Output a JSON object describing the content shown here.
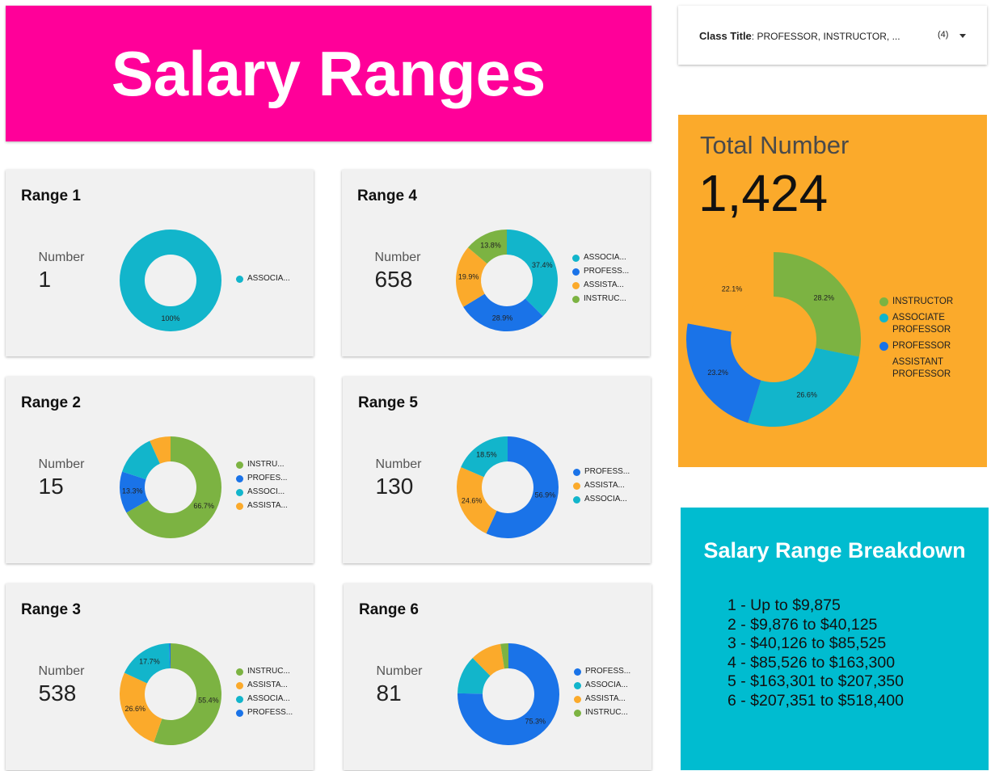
{
  "title": "Salary Ranges",
  "filter": {
    "label": "Class Title",
    "value": ": PROFESSOR, INSTRUCTOR, ...",
    "count": "(4)"
  },
  "breakdown": {
    "title": "Salary Range Breakdown",
    "lines": [
      "1 - Up to $9,875",
      "2 - $9,876 to $40,125",
      "3 - $40,126 to $85,525",
      "4 - $85,526 to $163,300",
      "5 - $163,301 to $207,350",
      "6 - $207,351 to $518,400"
    ]
  },
  "chart_data": [
    {
      "type": "pie",
      "title": "Range 1",
      "metric_label": "Number",
      "metric": 1,
      "categories": [
        "ASSOCIA..."
      ],
      "values": [
        100
      ],
      "value_labels": [
        "100%"
      ],
      "colors": [
        "#12b5cb"
      ]
    },
    {
      "type": "pie",
      "title": "Range 2",
      "metric_label": "Number",
      "metric": 15,
      "categories": [
        "INSTRU...",
        "PROFES...",
        "ASSOCI...",
        "ASSISTA..."
      ],
      "values": [
        66.7,
        13.3,
        13.3,
        6.7
      ],
      "value_labels": [
        "66.7%",
        "13.3%",
        null,
        null
      ],
      "colors": [
        "#7cb342",
        "#1a73e8",
        "#12b5cb",
        "#fbaa2b"
      ]
    },
    {
      "type": "pie",
      "title": "Range 3",
      "metric_label": "Number",
      "metric": 538,
      "categories": [
        "INSTRUC...",
        "ASSISTA...",
        "ASSOCIA...",
        "PROFESS..."
      ],
      "values": [
        55.4,
        26.6,
        17.7,
        0.4
      ],
      "value_labels": [
        "55.4%",
        "26.6%",
        "17.7%",
        null
      ],
      "colors": [
        "#7cb342",
        "#fbaa2b",
        "#12b5cb",
        "#1a73e8"
      ]
    },
    {
      "type": "pie",
      "title": "Range 4",
      "metric_label": "Number",
      "metric": 658,
      "categories": [
        "ASSOCIA...",
        "PROFESS...",
        "ASSISTA...",
        "INSTRUC..."
      ],
      "values": [
        37.4,
        28.9,
        19.9,
        13.8
      ],
      "value_labels": [
        "37.4%",
        "28.9%",
        "19.9%",
        "13.8%"
      ],
      "colors": [
        "#12b5cb",
        "#1a73e8",
        "#fbaa2b",
        "#7cb342"
      ]
    },
    {
      "type": "pie",
      "title": "Range 5",
      "metric_label": "Number",
      "metric": 130,
      "categories": [
        "PROFESS...",
        "ASSISTA...",
        "ASSOCIA..."
      ],
      "values": [
        56.9,
        24.6,
        18.5
      ],
      "value_labels": [
        "56.9%",
        "24.6%",
        "18.5%"
      ],
      "colors": [
        "#1a73e8",
        "#fbaa2b",
        "#12b5cb"
      ]
    },
    {
      "type": "pie",
      "title": "Range 6",
      "metric_label": "Number",
      "metric": 81,
      "categories": [
        "PROFESS...",
        "ASSOCIA...",
        "ASSISTA...",
        "INSTRUC..."
      ],
      "values": [
        75.3,
        12.3,
        9.9,
        2.5
      ],
      "value_labels": [
        "75.3%",
        null,
        null,
        null
      ],
      "colors": [
        "#1a73e8",
        "#12b5cb",
        "#fbaa2b",
        "#7cb342"
      ]
    },
    {
      "type": "pie",
      "title": "Total Number",
      "metric": "1,424",
      "categories": [
        "INSTRUCTOR",
        "ASSOCIATE PROFESSOR",
        "PROFESSOR",
        "ASSISTANT PROFESSOR"
      ],
      "values": [
        28.2,
        26.6,
        23.2,
        22.1
      ],
      "value_labels": [
        "28.2%",
        "26.6%",
        "23.2%",
        "22.1%"
      ],
      "colors": [
        "#7cb342",
        "#12b5cb",
        "#1a73e8",
        "#fbaa2b"
      ]
    }
  ]
}
